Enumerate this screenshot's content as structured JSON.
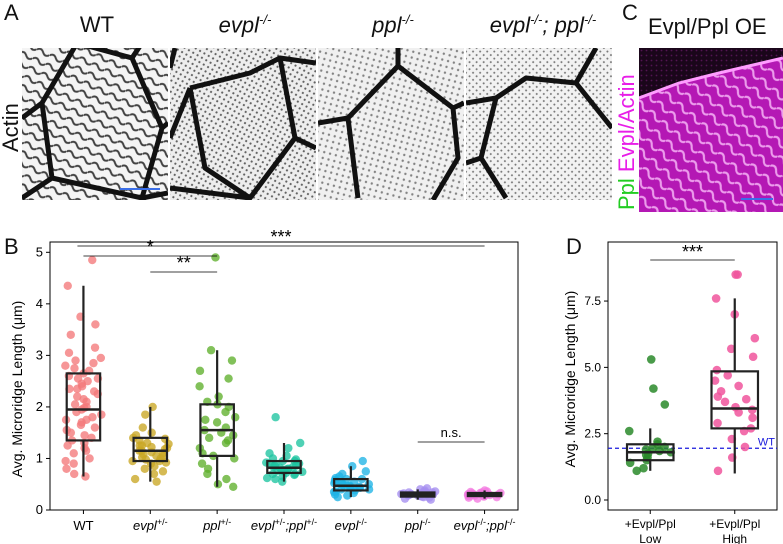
{
  "panel_a": {
    "letter": "A",
    "row_label": "Actin",
    "genotypes": [
      {
        "base": "WT",
        "sup": ""
      },
      {
        "base": "evpl",
        "sup": "-/-"
      },
      {
        "base": "ppl",
        "sup": "-/-"
      },
      {
        "base": "evpl",
        "sup": "-/-",
        "base2": "; ppl",
        "sup2": "-/-"
      }
    ]
  },
  "panel_c": {
    "letter": "C",
    "title": "Evpl/Ppl OE",
    "side_label_1": "Ppl",
    "side_label_2": "Evpl/Actin",
    "colors": {
      "magenta": "#e81ee8",
      "green": "#22cc22"
    }
  },
  "panel_b": {
    "letter": "B",
    "ylabel": "Avg. Microridge Length (μm)",
    "sig": {
      "star1": "*",
      "star2": "**",
      "star3": "***",
      "ns": "n.s."
    }
  },
  "panel_d": {
    "letter": "D",
    "ylabel": "Avg. Microridge Length (μm)",
    "wt_label": "WT",
    "sig": "***"
  },
  "chart_data": [
    {
      "type": "box",
      "ylabel": "Avg. Microridge Length (μm)",
      "ylim": [
        0,
        5.2
      ],
      "yticks": [
        0,
        1,
        2,
        3,
        4,
        5
      ],
      "categories": [
        {
          "base": "WT",
          "sup": ""
        },
        {
          "base": "evpl",
          "sup": "+/-"
        },
        {
          "base": "ppl",
          "sup": "+/-"
        },
        {
          "base": "evpl",
          "sup": "+/-",
          "base2": ";ppl",
          "sup2": "+/-"
        },
        {
          "base": "evpl",
          "sup": "-/-"
        },
        {
          "base": "ppl",
          "sup": "-/-"
        },
        {
          "base": "evpl",
          "sup": "-/-",
          "base2": ";ppl",
          "sup2": "-/-"
        }
      ],
      "colors": [
        "#f4797a",
        "#c9a624",
        "#5fb02c",
        "#1ec4a0",
        "#1fb4e6",
        "#a58ef0",
        "#f47ae0"
      ],
      "boxes": [
        {
          "q1": 1.35,
          "median": 1.95,
          "q3": 2.65,
          "whislo": 0.65,
          "whishi": 4.35
        },
        {
          "q1": 0.95,
          "median": 1.15,
          "q3": 1.4,
          "whislo": 0.55,
          "whishi": 2.0
        },
        {
          "q1": 1.05,
          "median": 1.55,
          "q3": 2.05,
          "whislo": 0.45,
          "whishi": 3.1
        },
        {
          "q1": 0.72,
          "median": 0.82,
          "q3": 0.95,
          "whislo": 0.55,
          "whishi": 1.3
        },
        {
          "q1": 0.38,
          "median": 0.47,
          "q3": 0.6,
          "whislo": 0.25,
          "whishi": 0.85
        },
        {
          "q1": 0.26,
          "median": 0.3,
          "q3": 0.34,
          "whislo": 0.2,
          "whishi": 0.4
        },
        {
          "q1": 0.27,
          "median": 0.3,
          "q3": 0.33,
          "whislo": 0.22,
          "whishi": 0.38
        }
      ],
      "points": [
        [
          4.85,
          4.35,
          3.75,
          3.6,
          3.4,
          3.15,
          3.05,
          2.95,
          2.9,
          2.85,
          2.8,
          2.75,
          2.7,
          2.65,
          2.6,
          2.55,
          2.5,
          2.45,
          2.4,
          2.35,
          2.3,
          2.25,
          2.2,
          2.15,
          2.1,
          2.05,
          2.0,
          1.98,
          1.95,
          1.9,
          1.85,
          1.8,
          1.75,
          1.7,
          1.65,
          1.6,
          1.55,
          1.5,
          1.45,
          1.4,
          1.35,
          1.3,
          1.25,
          1.2,
          1.1,
          1.0,
          0.95,
          0.9,
          0.8,
          0.7,
          0.65,
          1.15,
          2.55,
          2.35,
          1.75
        ],
        [
          2.0,
          1.85,
          1.6,
          1.5,
          1.45,
          1.4,
          1.38,
          1.35,
          1.3,
          1.28,
          1.25,
          1.22,
          1.2,
          1.18,
          1.15,
          1.12,
          1.1,
          1.08,
          1.05,
          1.02,
          1.0,
          0.98,
          0.95,
          0.92,
          0.9,
          0.85,
          0.8,
          0.75,
          0.7,
          0.6,
          0.55,
          1.15,
          1.25,
          1.05,
          0.95
        ],
        [
          4.9,
          3.1,
          2.9,
          2.7,
          2.55,
          2.4,
          2.2,
          2.1,
          2.05,
          2.0,
          1.9,
          1.8,
          1.7,
          1.6,
          1.55,
          1.5,
          1.45,
          1.4,
          1.3,
          1.2,
          1.1,
          1.05,
          1.0,
          0.9,
          0.8,
          0.7,
          0.6,
          0.5,
          0.45,
          1.75,
          1.35
        ],
        [
          1.8,
          1.3,
          1.2,
          1.1,
          1.0,
          0.98,
          0.95,
          0.92,
          0.9,
          0.88,
          0.86,
          0.84,
          0.82,
          0.8,
          0.78,
          0.76,
          0.74,
          0.72,
          0.7,
          0.68,
          0.65,
          0.62,
          0.6,
          0.55,
          0.85,
          0.9,
          0.8,
          0.75,
          0.7,
          0.95,
          1.05,
          0.83,
          0.77
        ],
        [
          0.95,
          0.85,
          0.75,
          0.7,
          0.65,
          0.62,
          0.6,
          0.58,
          0.55,
          0.52,
          0.5,
          0.48,
          0.47,
          0.45,
          0.43,
          0.42,
          0.4,
          0.38,
          0.36,
          0.35,
          0.33,
          0.3,
          0.28,
          0.25,
          0.5,
          0.55,
          0.45,
          0.4,
          0.6,
          0.52,
          0.47
        ],
        [
          0.42,
          0.4,
          0.38,
          0.36,
          0.35,
          0.34,
          0.33,
          0.32,
          0.31,
          0.3,
          0.3,
          0.29,
          0.28,
          0.27,
          0.26,
          0.25,
          0.24,
          0.22,
          0.2,
          0.32,
          0.3,
          0.28,
          0.34,
          0.31
        ],
        [
          0.38,
          0.36,
          0.35,
          0.34,
          0.33,
          0.32,
          0.31,
          0.3,
          0.3,
          0.3,
          0.29,
          0.29,
          0.28,
          0.28,
          0.27,
          0.26,
          0.25,
          0.24,
          0.22,
          0.31,
          0.3,
          0.29,
          0.32,
          0.3,
          0.28,
          0.33,
          0.27
        ]
      ],
      "significance": [
        {
          "from": 0,
          "to": 6,
          "label": "***"
        },
        {
          "from": 0,
          "to": 2,
          "label": "*"
        },
        {
          "from": 1,
          "to": 2,
          "label": "**"
        },
        {
          "from": 5,
          "to": 6,
          "label": "n.s."
        }
      ]
    },
    {
      "type": "box",
      "ylabel": "Avg. Microridge Length (μm)",
      "ylim": [
        0,
        9.5
      ],
      "yticks": [
        0.0,
        2.5,
        5.0,
        7.5
      ],
      "ytick_labels": [
        "0.0",
        "2.5",
        "5.0",
        "7.5"
      ],
      "categories": [
        {
          "line1": "+Evpl/Ppl",
          "line2": "Low"
        },
        {
          "line1": "+Evpl/Ppl",
          "line2": "High"
        }
      ],
      "colors": [
        "#2a8a2a",
        "#f0559c"
      ],
      "boxes": [
        {
          "q1": 1.5,
          "median": 1.8,
          "q3": 2.1,
          "whislo": 1.1,
          "whishi": 2.7
        },
        {
          "q1": 2.7,
          "median": 3.45,
          "q3": 4.85,
          "whislo": 1.0,
          "whishi": 7.6
        }
      ],
      "points": [
        [
          5.3,
          4.2,
          3.6,
          2.6,
          2.2,
          2.1,
          2.0,
          1.95,
          1.9,
          1.85,
          1.8,
          1.7,
          1.6,
          1.5,
          1.4,
          1.2,
          1.1,
          1.75
        ],
        [
          8.5,
          8.5,
          7.6,
          7.0,
          6.1,
          5.7,
          5.4,
          4.9,
          4.7,
          4.5,
          4.3,
          4.1,
          3.9,
          3.7,
          3.5,
          3.4,
          3.3,
          3.1,
          2.9,
          2.7,
          2.6,
          2.3,
          1.6,
          1.1,
          2.0,
          3.8
        ]
      ],
      "reference_line": {
        "value": 1.95,
        "label": "WT",
        "color": "#1a1adb"
      },
      "significance": [
        {
          "from": 0,
          "to": 1,
          "label": "***"
        }
      ]
    }
  ]
}
